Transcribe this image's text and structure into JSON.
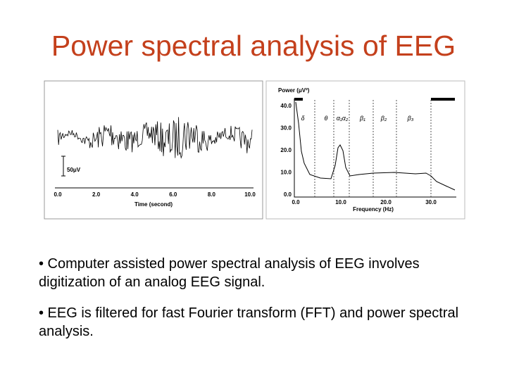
{
  "header": {
    "title": "Power spectral analysis of EEG"
  },
  "figure": {
    "eeg": {
      "tick_labels": [
        "0.0",
        "2.0",
        "4.0",
        "6.0",
        "8.0",
        "10.0"
      ],
      "x_label": "Time (second)",
      "scale_label": "50μV"
    },
    "spectrum": {
      "y_label": "Power (μV²)",
      "y_tick_labels": [
        "40.0",
        "30.0",
        "20.0",
        "10.0",
        "0.0"
      ],
      "x_tick_labels": [
        "0.0",
        "10.0",
        "20.0",
        "30.0"
      ],
      "x_label": "Frequency (Hz)",
      "bands": [
        "δ",
        "θ",
        "α₁α₂",
        "β₁",
        "β₂",
        "β₃"
      ]
    }
  },
  "bullets": [
    "• Computer assisted power spectral analysis of EEG involves digitization of an analog EEG signal.",
    "• EEG is filtered for fast Fourier transform (FFT) and power spectral analysis."
  ]
}
